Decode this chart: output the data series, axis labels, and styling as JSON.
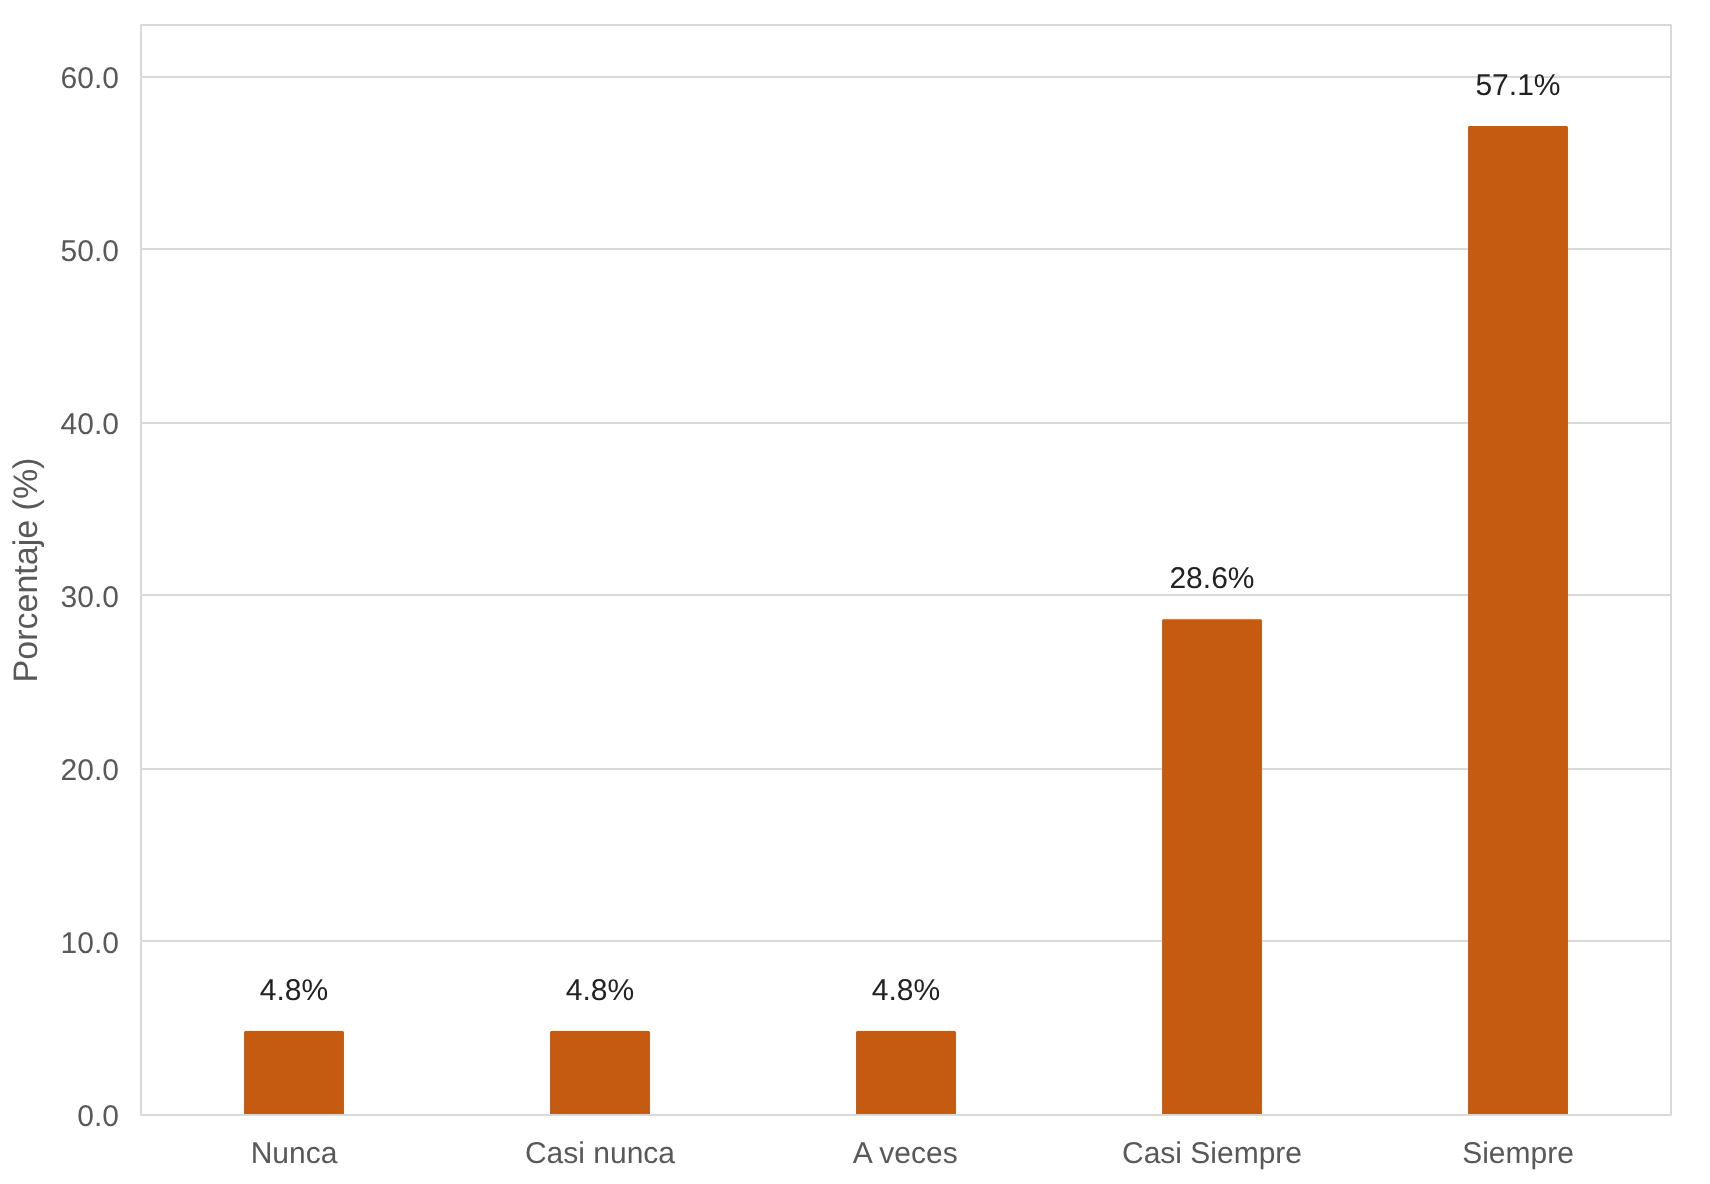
{
  "chart_data": {
    "type": "bar",
    "ylabel": "Porcentaje (%)",
    "categories": [
      "Nunca",
      "Casi nunca",
      "A veces",
      "Casi Siempre",
      "Siempre"
    ],
    "values": [
      4.8,
      4.8,
      4.8,
      28.6,
      57.1
    ],
    "value_labels": [
      "4.8%",
      "4.8%",
      "4.8%",
      "28.6%",
      "57.1%"
    ],
    "color": "#c55a11",
    "ylim": [
      0,
      63
    ],
    "yticks": [
      {
        "value": 0,
        "label": "0.0"
      },
      {
        "value": 10,
        "label": "10.0"
      },
      {
        "value": 20,
        "label": "20.0"
      },
      {
        "value": 30,
        "label": "30.0"
      },
      {
        "value": 40,
        "label": "40.0"
      },
      {
        "value": 50,
        "label": "50.0"
      },
      {
        "value": 60,
        "label": "60.0"
      }
    ],
    "grid": "y"
  }
}
